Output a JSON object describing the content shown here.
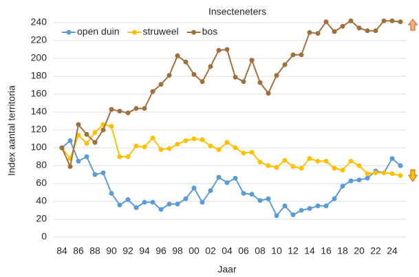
{
  "chart_data": {
    "type": "line",
    "title": "Insecteneters",
    "x_label": "Jaar",
    "y_label": "Index aantal territoria",
    "categories": [
      "84",
      null,
      "86",
      null,
      "88",
      null,
      "90",
      null,
      "92",
      null,
      "94",
      null,
      "96",
      null,
      "98",
      null,
      "00",
      null,
      "02",
      null,
      "04",
      null,
      "06",
      null,
      "08",
      null,
      "10",
      null,
      "12",
      null,
      "14",
      null,
      "16",
      null,
      "18",
      null,
      "20",
      null,
      "22",
      null,
      "24",
      null
    ],
    "series": [
      {
        "name": "open duin",
        "color": "#5b9bd5",
        "values": [
          100,
          108,
          85,
          90,
          70,
          72,
          49,
          36,
          42,
          33,
          39,
          39,
          31,
          37,
          37,
          43,
          55,
          39,
          52,
          67,
          61,
          66,
          49,
          48,
          41,
          43,
          24,
          35,
          25,
          30,
          32,
          35,
          35,
          43,
          57,
          63,
          64,
          66,
          74,
          72,
          88,
          80
        ]
      },
      {
        "name": "struweel",
        "color": "#ffc000",
        "values": [
          100,
          88,
          114,
          105,
          117,
          126,
          124,
          90,
          90,
          102,
          101,
          111,
          98,
          99,
          104,
          108,
          110,
          109,
          102,
          98,
          106,
          100,
          94,
          95,
          84,
          80,
          78,
          86,
          79,
          77,
          88,
          85,
          85,
          77,
          75,
          85,
          80,
          71,
          72,
          72,
          71,
          69
        ]
      },
      {
        "name": "bos",
        "color": "#a0703c",
        "values": [
          100,
          79,
          126,
          115,
          106,
          120,
          143,
          141,
          139,
          144,
          144,
          163,
          171,
          181,
          203,
          196,
          182,
          174,
          191,
          209,
          210,
          179,
          174,
          198,
          173,
          161,
          181,
          193,
          204,
          204,
          229,
          228,
          241,
          230,
          236,
          242,
          234,
          231,
          231,
          242,
          242,
          241
        ]
      }
    ],
    "ylim": [
      0,
      240
    ],
    "yticks": [
      0,
      20,
      40,
      60,
      80,
      100,
      120,
      140,
      160,
      180,
      200,
      220,
      240
    ],
    "grid": true,
    "legend": "top-left"
  }
}
